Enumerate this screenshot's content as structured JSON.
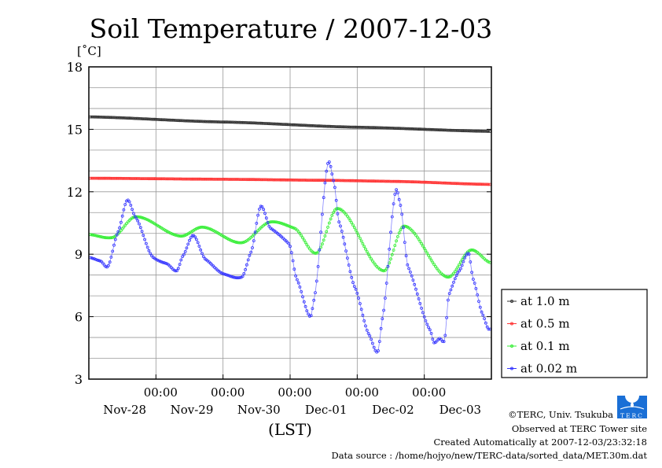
{
  "chart_data": {
    "type": "line",
    "title": "Soil Temperature / 2007-12-03",
    "ylabel": "[˚C]",
    "xlabel": "(LST)",
    "ylim": [
      3,
      18
    ],
    "yticks": [
      3,
      6,
      9,
      12,
      15,
      18
    ],
    "xlim_hours": [
      0,
      144
    ],
    "x_origin": "Nov-28 00:00",
    "xtick_time_labels": [
      "00:00",
      "00:00",
      "00:00",
      "00:00",
      "00:00"
    ],
    "xtick_hours": [
      24,
      48,
      72,
      96,
      120
    ],
    "day_labels": [
      "Nov-28",
      "Nov-29",
      "Nov-30",
      "Dec-01",
      "Dec-02",
      "Dec-03"
    ],
    "grid": true,
    "legend_position": "right",
    "series": [
      {
        "name": "at 1.0 m",
        "color": "#333333",
        "points": [
          [
            0,
            15.6
          ],
          [
            48,
            15.35
          ],
          [
            96,
            15.1
          ],
          [
            144,
            14.9
          ]
        ]
      },
      {
        "name": "at 0.5 m",
        "color": "#ff3333",
        "points": [
          [
            0,
            12.65
          ],
          [
            48,
            12.6
          ],
          [
            84,
            12.55
          ],
          [
            108,
            12.5
          ],
          [
            144,
            12.35
          ]
        ]
      },
      {
        "name": "at 0.1 m",
        "color": "#33ee33",
        "points": [
          [
            0,
            9.95
          ],
          [
            8.4,
            9.8
          ],
          [
            16.8,
            10.8
          ],
          [
            32.8,
            9.87
          ],
          [
            40.7,
            10.3
          ],
          [
            54.5,
            9.55
          ],
          [
            65,
            10.55
          ],
          [
            73.5,
            10.25
          ],
          [
            81.4,
            9.05
          ],
          [
            89,
            11.2
          ],
          [
            105.5,
            8.2
          ],
          [
            112.8,
            10.35
          ],
          [
            128.3,
            7.9
          ],
          [
            136.7,
            9.2
          ],
          [
            143.5,
            8.6
          ]
        ]
      },
      {
        "name": "at 0.02 m",
        "color": "#3333ff",
        "points": [
          [
            0,
            8.85
          ],
          [
            4.2,
            8.67
          ],
          [
            6.7,
            8.4
          ],
          [
            10.4,
            10.05
          ],
          [
            13.8,
            11.6
          ],
          [
            16.6,
            10.8
          ],
          [
            23,
            8.85
          ],
          [
            27.8,
            8.55
          ],
          [
            31.4,
            8.2
          ],
          [
            33.7,
            8.93
          ],
          [
            37.3,
            9.9
          ],
          [
            41.8,
            8.75
          ],
          [
            48.3,
            8.05
          ],
          [
            54.7,
            7.9
          ],
          [
            58,
            9.1
          ],
          [
            61.5,
            11.3
          ],
          [
            65,
            10.25
          ],
          [
            71.6,
            9.5
          ],
          [
            74.4,
            7.8
          ],
          [
            79.2,
            6.0
          ],
          [
            80.6,
            6.85
          ],
          [
            85.6,
            13.4
          ],
          [
            87.6,
            12.5
          ],
          [
            89.5,
            10.55
          ],
          [
            95.2,
            7.4
          ],
          [
            100.2,
            5.15
          ],
          [
            103.3,
            4.3
          ],
          [
            105,
            5.9
          ],
          [
            109.8,
            12.05
          ],
          [
            111.4,
            11.4
          ],
          [
            114.2,
            8.4
          ],
          [
            122.1,
            5.35
          ],
          [
            123.5,
            4.75
          ],
          [
            125.5,
            4.95
          ],
          [
            127.2,
            4.85
          ],
          [
            128.8,
            7.05
          ],
          [
            132.5,
            8.2
          ],
          [
            135.8,
            9.05
          ],
          [
            137.5,
            7.8
          ],
          [
            140.9,
            6.1
          ],
          [
            142.9,
            5.4
          ]
        ]
      }
    ]
  },
  "footer": {
    "copyright": "©TERC, Univ. Tsukuba",
    "site": "Observed at TERC Tower site",
    "created": "Created Automatically at 2007-12-03/23:32:18",
    "source": "Data source : /home/hojyo/new/TERC-data/sorted_data/MET.30m.dat",
    "logo_text": "TERC"
  }
}
